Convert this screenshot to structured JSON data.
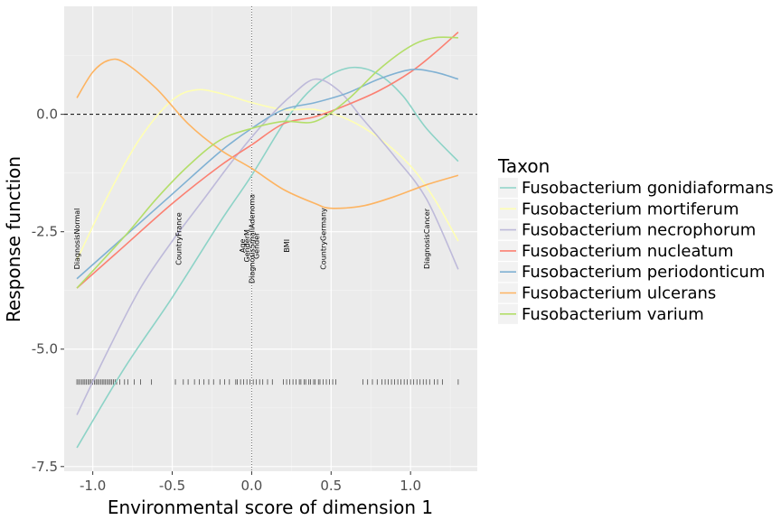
{
  "chart_data": {
    "type": "line",
    "xlabel": "Environmental score of dimension 1",
    "ylabel": "Response function",
    "xlim": [
      -1.18,
      1.42
    ],
    "ylim": [
      -7.6,
      2.3
    ],
    "x_ticks": [
      -1.0,
      -0.5,
      0.0,
      0.5,
      1.0
    ],
    "x_tick_labels": [
      "-1.0",
      "-0.5",
      "0.0",
      "0.5",
      "1.0"
    ],
    "y_ticks": [
      -7.5,
      -5.0,
      -2.5,
      0.0
    ],
    "y_tick_labels": [
      "-7.5",
      "-5.0",
      "-2.5",
      "0.0"
    ],
    "hline": 0,
    "vline": 0,
    "grid": true,
    "legend": {
      "title": "Taxon",
      "position": "right"
    },
    "series": [
      {
        "name": "Fusobacterium gonidiaformans",
        "color": "#8dd3c7",
        "points": [
          [
            -1.1,
            -7.1
          ],
          [
            -0.8,
            -5.4
          ],
          [
            -0.5,
            -3.9
          ],
          [
            -0.2,
            -2.3
          ],
          [
            0.0,
            -1.3
          ],
          [
            0.2,
            -0.2
          ],
          [
            0.35,
            0.45
          ],
          [
            0.5,
            0.85
          ],
          [
            0.65,
            1.0
          ],
          [
            0.8,
            0.85
          ],
          [
            0.95,
            0.4
          ],
          [
            1.1,
            -0.3
          ],
          [
            1.3,
            -1.0
          ]
        ]
      },
      {
        "name": "Fusobacterium mortiferum",
        "color": "#ffffb3",
        "points": [
          [
            -1.1,
            -3.1
          ],
          [
            -0.9,
            -1.7
          ],
          [
            -0.7,
            -0.5
          ],
          [
            -0.5,
            0.3
          ],
          [
            -0.35,
            0.52
          ],
          [
            -0.2,
            0.45
          ],
          [
            0.0,
            0.25
          ],
          [
            0.2,
            0.1
          ],
          [
            0.4,
            0.1
          ],
          [
            0.6,
            -0.1
          ],
          [
            0.8,
            -0.5
          ],
          [
            1.0,
            -1.1
          ],
          [
            1.15,
            -1.8
          ],
          [
            1.3,
            -2.7
          ]
        ]
      },
      {
        "name": "Fusobacterium necrophorum",
        "color": "#bebada",
        "points": [
          [
            -1.1,
            -6.4
          ],
          [
            -0.9,
            -5.0
          ],
          [
            -0.7,
            -3.7
          ],
          [
            -0.5,
            -2.7
          ],
          [
            -0.3,
            -1.8
          ],
          [
            -0.1,
            -0.9
          ],
          [
            0.1,
            -0.1
          ],
          [
            0.25,
            0.4
          ],
          [
            0.4,
            0.75
          ],
          [
            0.55,
            0.5
          ],
          [
            0.7,
            -0.1
          ],
          [
            0.9,
            -0.9
          ],
          [
            1.1,
            -1.8
          ],
          [
            1.3,
            -3.3
          ]
        ]
      },
      {
        "name": "Fusobacterium nucleatum",
        "color": "#fb8072",
        "points": [
          [
            -1.1,
            -3.7
          ],
          [
            -0.8,
            -2.8
          ],
          [
            -0.5,
            -1.9
          ],
          [
            -0.2,
            -1.1
          ],
          [
            0.0,
            -0.65
          ],
          [
            0.2,
            -0.2
          ],
          [
            0.4,
            -0.05
          ],
          [
            0.6,
            0.2
          ],
          [
            0.8,
            0.5
          ],
          [
            1.0,
            0.9
          ],
          [
            1.15,
            1.3
          ],
          [
            1.3,
            1.75
          ]
        ]
      },
      {
        "name": "Fusobacterium periodonticum",
        "color": "#80b1d3",
        "points": [
          [
            -1.1,
            -3.5
          ],
          [
            -0.8,
            -2.6
          ],
          [
            -0.5,
            -1.7
          ],
          [
            -0.2,
            -0.8
          ],
          [
            0.0,
            -0.3
          ],
          [
            0.2,
            0.1
          ],
          [
            0.4,
            0.25
          ],
          [
            0.6,
            0.45
          ],
          [
            0.8,
            0.75
          ],
          [
            1.0,
            0.95
          ],
          [
            1.15,
            0.9
          ],
          [
            1.3,
            0.75
          ]
        ]
      },
      {
        "name": "Fusobacterium ulcerans",
        "color": "#fdb462",
        "points": [
          [
            -1.1,
            0.35
          ],
          [
            -1.0,
            0.9
          ],
          [
            -0.9,
            1.15
          ],
          [
            -0.8,
            1.1
          ],
          [
            -0.6,
            0.55
          ],
          [
            -0.4,
            -0.2
          ],
          [
            -0.2,
            -0.75
          ],
          [
            0.0,
            -1.15
          ],
          [
            0.2,
            -1.6
          ],
          [
            0.4,
            -1.9
          ],
          [
            0.5,
            -2.0
          ],
          [
            0.7,
            -1.95
          ],
          [
            0.9,
            -1.75
          ],
          [
            1.1,
            -1.5
          ],
          [
            1.3,
            -1.3
          ]
        ]
      },
      {
        "name": "Fusobacterium varium",
        "color": "#b3de69",
        "points": [
          [
            -1.1,
            -3.7
          ],
          [
            -0.8,
            -2.6
          ],
          [
            -0.6,
            -1.8
          ],
          [
            -0.4,
            -1.1
          ],
          [
            -0.2,
            -0.55
          ],
          [
            0.0,
            -0.3
          ],
          [
            0.2,
            -0.15
          ],
          [
            0.4,
            -0.15
          ],
          [
            0.6,
            0.3
          ],
          [
            0.8,
            0.95
          ],
          [
            1.0,
            1.45
          ],
          [
            1.15,
            1.63
          ],
          [
            1.3,
            1.63
          ]
        ]
      }
    ],
    "variable_labels": [
      {
        "text": "DiagnosisNormal",
        "x": -1.1,
        "y": -2.65
      },
      {
        "text": "CountryFrance",
        "x": -0.46,
        "y": -2.65
      },
      {
        "text": "Age",
        "x": -0.06,
        "y": -2.8
      },
      {
        "text": "GenderM",
        "x": -0.03,
        "y": -2.8
      },
      {
        "text": "DiagnosisSmallAdenoma",
        "x": 0.0,
        "y": -2.65
      },
      {
        "text": "Gender",
        "x": 0.03,
        "y": -2.8
      },
      {
        "text": "BMI",
        "x": 0.22,
        "y": -2.8
      },
      {
        "text": "CountryGermany",
        "x": 0.45,
        "y": -2.65
      },
      {
        "text": "DiagnosisCancer",
        "x": 1.1,
        "y": -2.65
      }
    ],
    "rug_y": -5.7,
    "rug_x": [
      -1.1,
      -1.09,
      -1.08,
      -1.07,
      -1.06,
      -1.05,
      -1.04,
      -1.03,
      -1.02,
      -1.01,
      -1.0,
      -0.99,
      -0.98,
      -0.97,
      -0.96,
      -0.95,
      -0.94,
      -0.93,
      -0.92,
      -0.91,
      -0.9,
      -0.89,
      -0.88,
      -0.87,
      -0.86,
      -0.85,
      -0.83,
      -0.8,
      -0.78,
      -0.74,
      -0.7,
      -0.63,
      -0.48,
      -0.43,
      -0.4,
      -0.36,
      -0.33,
      -0.3,
      -0.27,
      -0.24,
      -0.2,
      -0.17,
      -0.14,
      -0.1,
      -0.09,
      -0.07,
      -0.05,
      -0.03,
      -0.01,
      0.01,
      0.03,
      0.05,
      0.07,
      0.1,
      0.13,
      0.2,
      0.22,
      0.24,
      0.26,
      0.28,
      0.3,
      0.31,
      0.33,
      0.34,
      0.36,
      0.37,
      0.39,
      0.4,
      0.42,
      0.43,
      0.45,
      0.47,
      0.49,
      0.51,
      0.53,
      0.7,
      0.73,
      0.76,
      0.79,
      0.82,
      0.84,
      0.86,
      0.88,
      0.9,
      0.92,
      0.94,
      0.96,
      0.98,
      1.0,
      1.02,
      1.04,
      1.06,
      1.08,
      1.1,
      1.12,
      1.15,
      1.17,
      1.2,
      1.3
    ]
  }
}
